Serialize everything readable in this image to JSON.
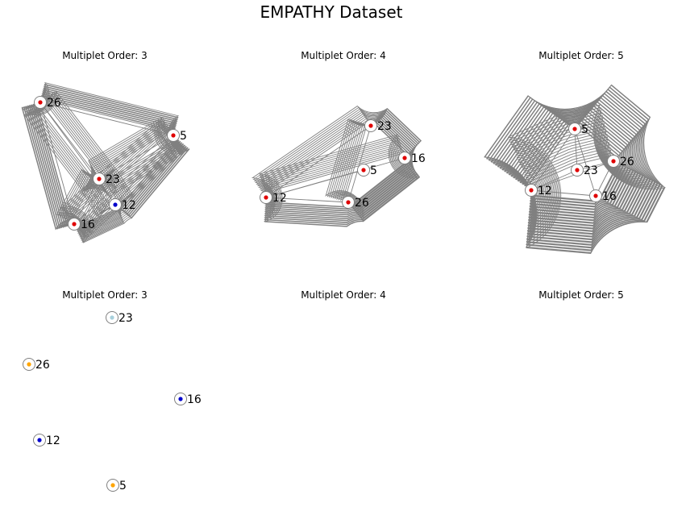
{
  "figure": {
    "title": "EMPATHY Dataset"
  },
  "colors": {
    "background": "#ffffff",
    "edge": "#808080",
    "ring": "#808080",
    "red": "#e00000",
    "blue": "#0000cc",
    "orange": "#ffa500",
    "lightblue": "#a8d0dc"
  },
  "panels": [
    {
      "title": "Multiplet Order: 3",
      "nodes": [
        {
          "id": "26",
          "color": "red"
        },
        {
          "id": "5",
          "color": "red"
        },
        {
          "id": "23",
          "color": "red"
        },
        {
          "id": "12",
          "color": "blue"
        },
        {
          "id": "16",
          "color": "red"
        }
      ]
    },
    {
      "title": "Multiplet Order: 4",
      "nodes": [
        {
          "id": "23",
          "color": "red"
        },
        {
          "id": "16",
          "color": "red"
        },
        {
          "id": "5",
          "color": "red"
        },
        {
          "id": "12",
          "color": "red"
        },
        {
          "id": "26",
          "color": "red"
        }
      ]
    },
    {
      "title": "Multiplet Order: 5",
      "nodes": [
        {
          "id": "5",
          "color": "red"
        },
        {
          "id": "26",
          "color": "red"
        },
        {
          "id": "23",
          "color": "red"
        },
        {
          "id": "12",
          "color": "red"
        },
        {
          "id": "16",
          "color": "red"
        }
      ]
    },
    {
      "title": "Multiplet Order: 3",
      "nodes": [
        {
          "id": "23",
          "color": "lightblue"
        },
        {
          "id": "26",
          "color": "orange"
        },
        {
          "id": "16",
          "color": "blue"
        },
        {
          "id": "12",
          "color": "blue"
        },
        {
          "id": "5",
          "color": "orange"
        }
      ]
    },
    {
      "title": "Multiplet Order: 4",
      "nodes": []
    },
    {
      "title": "Multiplet Order: 5",
      "nodes": []
    }
  ]
}
